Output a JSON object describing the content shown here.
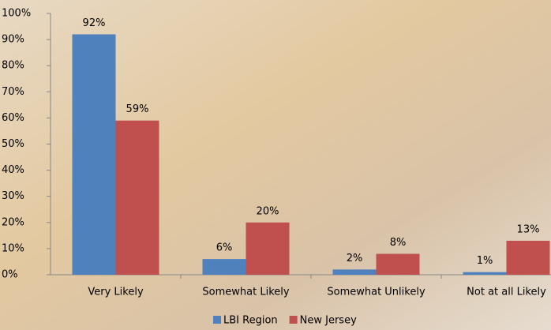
{
  "chart_data": {
    "type": "bar",
    "categories": [
      "Very Likely",
      "Somewhat Likely",
      "Somewhat Unlikely",
      "Not at all Likely"
    ],
    "series": [
      {
        "name": "LBI Region",
        "color": "#4f81bd",
        "values": [
          92,
          6,
          2,
          1
        ],
        "value_labels": [
          "92%",
          "6%",
          "2%",
          "1%"
        ]
      },
      {
        "name": "New Jersey",
        "color": "#c0504d",
        "values": [
          59,
          20,
          8,
          13
        ],
        "value_labels": [
          "59%",
          "20%",
          "8%",
          "13%"
        ]
      }
    ],
    "ylim": [
      0,
      100
    ],
    "yticks": [
      {
        "value": 0,
        "label": "0%"
      },
      {
        "value": 10,
        "label": "10%"
      },
      {
        "value": 20,
        "label": "20%"
      },
      {
        "value": 30,
        "label": "30%"
      },
      {
        "value": 40,
        "label": "40%"
      },
      {
        "value": 50,
        "label": "50%"
      },
      {
        "value": 60,
        "label": "60%"
      },
      {
        "value": 70,
        "label": "70%"
      },
      {
        "value": 80,
        "label": "80%"
      },
      {
        "value": 90,
        "label": "90%"
      },
      {
        "value": 100,
        "label": "100%"
      }
    ],
    "grid": false,
    "legend": "bottom"
  }
}
